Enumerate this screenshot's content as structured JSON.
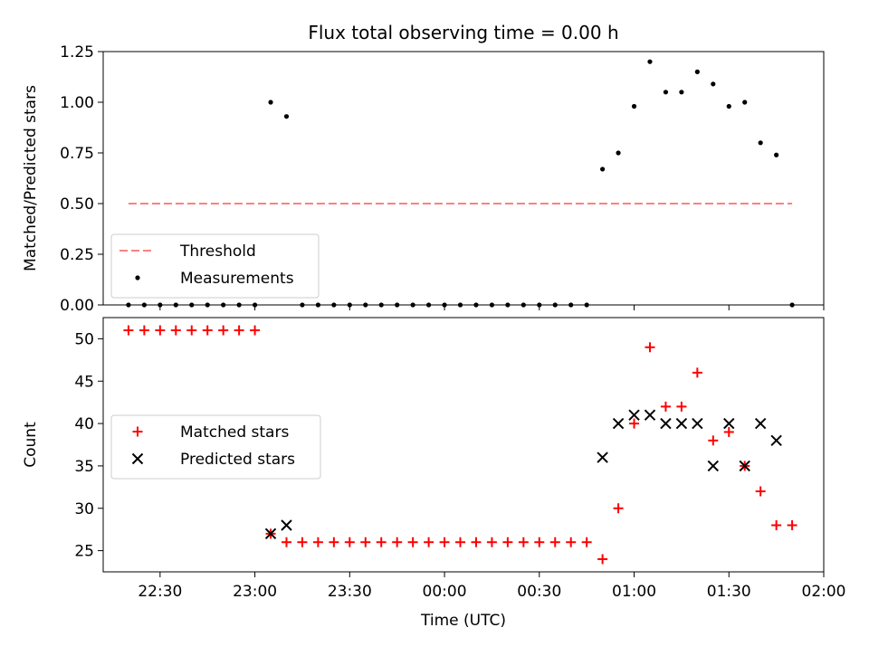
{
  "chart_data": [
    {
      "type": "scatter",
      "title": "Flux total observing time = 0.00 h",
      "xlabel": "",
      "ylabel": "Matched/Predicted stars",
      "ylim": [
        0,
        1.25
      ],
      "yticks": [
        "0.00",
        "0.25",
        "0.50",
        "0.75",
        "1.00",
        "1.25"
      ],
      "grid": false,
      "legend_position": "lower-left",
      "threshold": {
        "name": "Threshold",
        "value": 0.5,
        "x_start": "22:20",
        "x_end": "01:50",
        "color": "#ff7f7f",
        "style": "dashed"
      },
      "series": [
        {
          "name": "Measurements",
          "color": "#000000",
          "marker": "dot",
          "x": [
            "22:20",
            "22:25",
            "22:30",
            "22:35",
            "22:40",
            "22:45",
            "22:50",
            "22:55",
            "23:00",
            "23:05",
            "23:10",
            "23:15",
            "23:20",
            "23:25",
            "23:30",
            "23:35",
            "23:40",
            "23:45",
            "23:50",
            "23:55",
            "00:00",
            "00:05",
            "00:10",
            "00:15",
            "00:20",
            "00:25",
            "00:30",
            "00:35",
            "00:40",
            "00:45",
            "00:50",
            "00:55",
            "01:00",
            "01:05",
            "01:10",
            "01:15",
            "01:20",
            "01:25",
            "01:30",
            "01:35",
            "01:40",
            "01:45",
            "01:50"
          ],
          "y": [
            0,
            0,
            0,
            0,
            0,
            0,
            0,
            0,
            0,
            1.0,
            0.93,
            0,
            0,
            0,
            0,
            0,
            0,
            0,
            0,
            0,
            0,
            0,
            0,
            0,
            0,
            0,
            0,
            0,
            0,
            0,
            0.67,
            0.75,
            0.98,
            1.2,
            1.05,
            1.05,
            1.15,
            1.09,
            0.98,
            1.0,
            0.8,
            0.74,
            0
          ]
        }
      ]
    },
    {
      "type": "scatter",
      "title": "",
      "xlabel": "Time (UTC)",
      "ylabel": "Count",
      "ylim": [
        22.5,
        52.5
      ],
      "yticks": [
        "25",
        "30",
        "35",
        "40",
        "45",
        "50"
      ],
      "xlim": [
        "22:12",
        "02:00"
      ],
      "xticks": [
        "22:30",
        "23:00",
        "23:30",
        "00:00",
        "00:30",
        "01:00",
        "01:30",
        "02:00"
      ],
      "grid": false,
      "legend_position": "center-left",
      "series": [
        {
          "name": "Matched stars",
          "color": "#ff0000",
          "marker": "plus",
          "x": [
            "22:20",
            "22:25",
            "22:30",
            "22:35",
            "22:40",
            "22:45",
            "22:50",
            "22:55",
            "23:00",
            "23:05",
            "23:10",
            "23:15",
            "23:20",
            "23:25",
            "23:30",
            "23:35",
            "23:40",
            "23:45",
            "23:50",
            "23:55",
            "00:00",
            "00:05",
            "00:10",
            "00:15",
            "00:20",
            "00:25",
            "00:30",
            "00:35",
            "00:40",
            "00:45",
            "00:50",
            "00:55",
            "01:00",
            "01:05",
            "01:10",
            "01:15",
            "01:20",
            "01:25",
            "01:30",
            "01:35",
            "01:40",
            "01:45",
            "01:50"
          ],
          "y": [
            51,
            51,
            51,
            51,
            51,
            51,
            51,
            51,
            51,
            27,
            26,
            26,
            26,
            26,
            26,
            26,
            26,
            26,
            26,
            26,
            26,
            26,
            26,
            26,
            26,
            26,
            26,
            26,
            26,
            26,
            24,
            30,
            40,
            49,
            42,
            42,
            46,
            38,
            39,
            35,
            32,
            28,
            28
          ]
        },
        {
          "name": "Predicted stars",
          "color": "#000000",
          "marker": "x",
          "x": [
            "23:05",
            "23:10",
            "00:50",
            "00:55",
            "01:00",
            "01:05",
            "01:10",
            "01:15",
            "01:20",
            "01:25",
            "01:30",
            "01:35",
            "01:40",
            "01:45"
          ],
          "y": [
            27,
            28,
            36,
            40,
            41,
            41,
            40,
            40,
            40,
            35,
            40,
            35,
            40,
            38
          ]
        }
      ]
    }
  ]
}
